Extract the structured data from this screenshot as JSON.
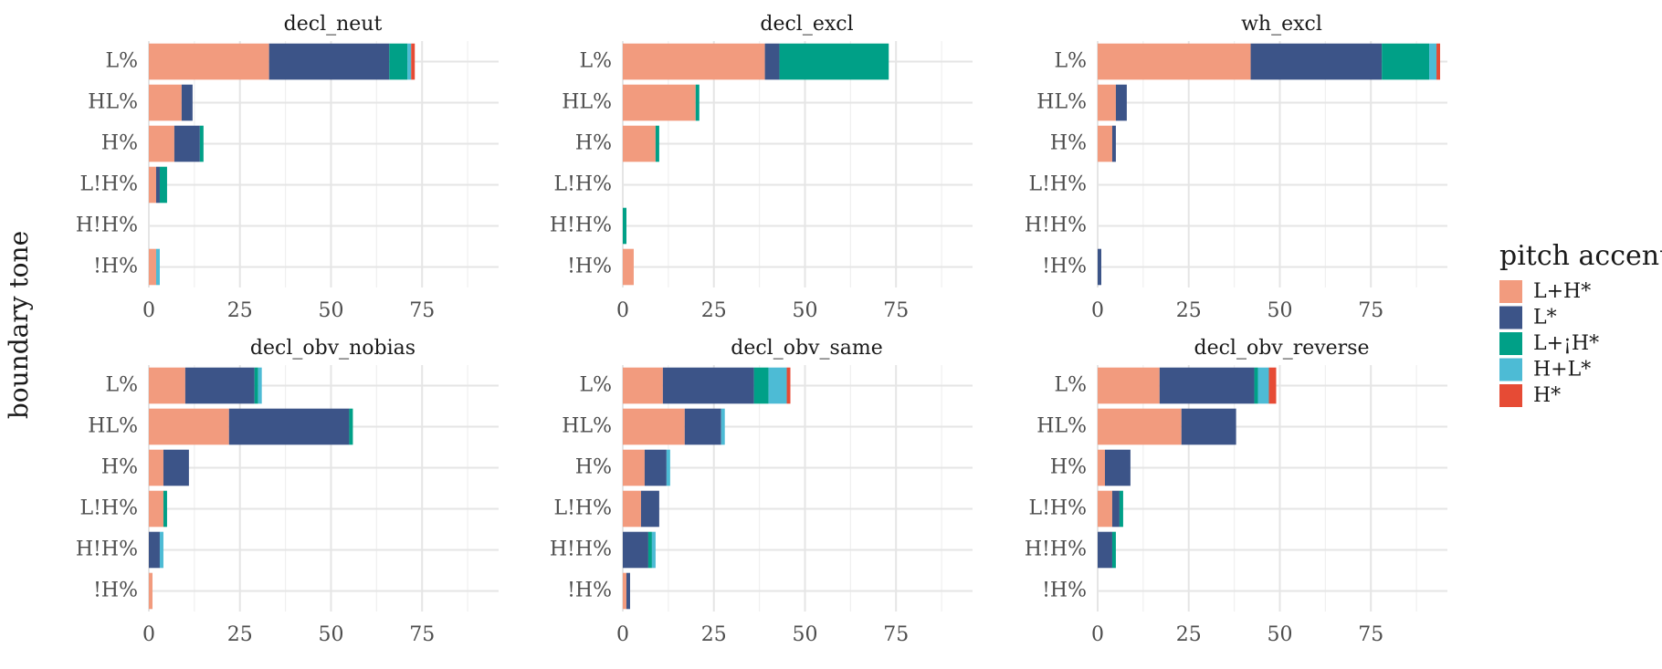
{
  "chart_data": {
    "type": "bar",
    "orientation": "horizontal",
    "stacked": true,
    "ylabel": "boundary tone",
    "legend": {
      "title": "pitch accent",
      "position": "right",
      "entries": [
        "L+H*",
        "L*",
        "L+¡H*",
        "H+L*",
        "H*"
      ]
    },
    "categories": [
      "L%",
      "HL%",
      "H%",
      "L!H%",
      "H!H%",
      "!H%"
    ],
    "xlim": [
      0,
      96
    ],
    "xticks": [
      0,
      25,
      50,
      75
    ],
    "colors": {
      "L+H*": "#F29B7E",
      "L*": "#3C5488",
      "L+¡H*": "#00A087",
      "H+L*": "#4DBBD5",
      "H*": "#E64B35"
    },
    "grid": true,
    "facets": [
      {
        "title": "decl_neut",
        "series": [
          {
            "name": "L+H*",
            "values": [
              33,
              9,
              7,
              2,
              0,
              2
            ]
          },
          {
            "name": "L*",
            "values": [
              33,
              3,
              7,
              1,
              0,
              0
            ]
          },
          {
            "name": "L+¡H*",
            "values": [
              5,
              0,
              1,
              2,
              0,
              0
            ]
          },
          {
            "name": "H+L*",
            "values": [
              1,
              0,
              0,
              0,
              0,
              1
            ]
          },
          {
            "name": "H*",
            "values": [
              1,
              0,
              0,
              0,
              0,
              0
            ]
          }
        ]
      },
      {
        "title": "decl_excl",
        "series": [
          {
            "name": "L+H*",
            "values": [
              39,
              20,
              9,
              0,
              0,
              3
            ]
          },
          {
            "name": "L*",
            "values": [
              4,
              0,
              0,
              0,
              0,
              0
            ]
          },
          {
            "name": "L+¡H*",
            "values": [
              30,
              1,
              1,
              0,
              1,
              0
            ]
          },
          {
            "name": "H+L*",
            "values": [
              0,
              0,
              0,
              0,
              0,
              0
            ]
          },
          {
            "name": "H*",
            "values": [
              0,
              0,
              0,
              0,
              0,
              0
            ]
          }
        ]
      },
      {
        "title": "wh_excl",
        "series": [
          {
            "name": "L+H*",
            "values": [
              42,
              5,
              4,
              0,
              0,
              0
            ]
          },
          {
            "name": "L*",
            "values": [
              36,
              3,
              1,
              0,
              0,
              1
            ]
          },
          {
            "name": "L+¡H*",
            "values": [
              13,
              0,
              0,
              0,
              0,
              0
            ]
          },
          {
            "name": "H+L*",
            "values": [
              2,
              0,
              0,
              0,
              0,
              0
            ]
          },
          {
            "name": "H*",
            "values": [
              1,
              0,
              0,
              0,
              0,
              0
            ]
          }
        ]
      },
      {
        "title": "decl_obv_nobias",
        "series": [
          {
            "name": "L+H*",
            "values": [
              10,
              22,
              4,
              4,
              0,
              1
            ]
          },
          {
            "name": "L*",
            "values": [
              19,
              33,
              7,
              0,
              3,
              0
            ]
          },
          {
            "name": "L+¡H*",
            "values": [
              1,
              1,
              0,
              1,
              0,
              0
            ]
          },
          {
            "name": "H+L*",
            "values": [
              1,
              0,
              0,
              0,
              1,
              0
            ]
          },
          {
            "name": "H*",
            "values": [
              0,
              0,
              0,
              0,
              0,
              0
            ]
          }
        ]
      },
      {
        "title": "decl_obv_same",
        "series": [
          {
            "name": "L+H*",
            "values": [
              11,
              17,
              6,
              5,
              0,
              1
            ]
          },
          {
            "name": "L*",
            "values": [
              25,
              10,
              6,
              5,
              7,
              1
            ]
          },
          {
            "name": "L+¡H*",
            "values": [
              4,
              0,
              0,
              0,
              1,
              0
            ]
          },
          {
            "name": "H+L*",
            "values": [
              5,
              1,
              1,
              0,
              1,
              0
            ]
          },
          {
            "name": "H*",
            "values": [
              1,
              0,
              0,
              0,
              0,
              0
            ]
          }
        ]
      },
      {
        "title": "decl_obv_reverse",
        "series": [
          {
            "name": "L+H*",
            "values": [
              17,
              23,
              2,
              4,
              0,
              0
            ]
          },
          {
            "name": "L*",
            "values": [
              26,
              15,
              7,
              2,
              4,
              0
            ]
          },
          {
            "name": "L+¡H*",
            "values": [
              1,
              0,
              0,
              1,
              1,
              0
            ]
          },
          {
            "name": "H+L*",
            "values": [
              3,
              0,
              0,
              0,
              0,
              0
            ]
          },
          {
            "name": "H*",
            "values": [
              2,
              0,
              0,
              0,
              0,
              0
            ]
          }
        ]
      }
    ]
  }
}
